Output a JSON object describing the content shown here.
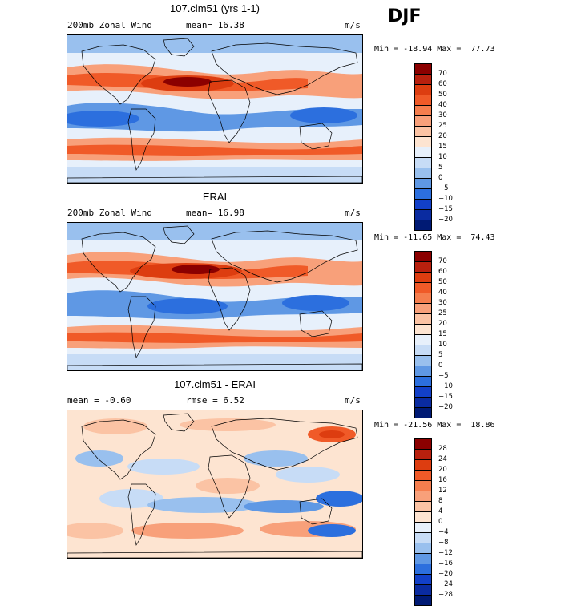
{
  "season": "DJF",
  "units": "m/s",
  "panels": [
    {
      "title": "107.clm51 (yrs 1-1)",
      "left_text": "200mb Zonal Wind",
      "mid_text": "mean=  16.38",
      "units": "m/s",
      "minmax": "Min = -18.94 Max =  77.73",
      "colorbar_labels": [
        "70",
        "60",
        "50",
        "40",
        "30",
        "25",
        "20",
        "15",
        "10",
        "5",
        "0",
        "−5",
        "−10",
        "−15",
        "−20"
      ],
      "kind": "model"
    },
    {
      "title": "ERAI",
      "left_text": "200mb Zonal Wind",
      "mid_text": "mean=  16.98",
      "units": "m/s",
      "minmax": "Min = -11.65 Max =  74.43",
      "colorbar_labels": [
        "70",
        "60",
        "50",
        "40",
        "30",
        "25",
        "20",
        "15",
        "10",
        "5",
        "0",
        "−5",
        "−10",
        "−15",
        "−20"
      ],
      "kind": "obs"
    },
    {
      "title": "107.clm51 - ERAI",
      "left_text": "mean =  -0.60",
      "mid_text": "rmse =   6.52",
      "units": "m/s",
      "minmax": "Min = -21.56 Max =  18.86",
      "colorbar_labels": [
        "28",
        "24",
        "20",
        "16",
        "12",
        "8",
        "4",
        "0",
        "−4",
        "−8",
        "−12",
        "−16",
        "−20",
        "−24",
        "−28"
      ],
      "kind": "diff"
    }
  ],
  "colors": {
    "wind_scale": [
      "#8b0000",
      "#b8200e",
      "#dd3d10",
      "#f05a28",
      "#f57e4e",
      "#f8a07a",
      "#fbc3a4",
      "#fde4d1",
      "#e7f0fb",
      "#c7dcf6",
      "#99c0ee",
      "#5f98e4",
      "#2c6fde",
      "#1240c8",
      "#0a2ba0",
      "#001a74"
    ],
    "diff_scale": [
      "#8b0000",
      "#b8200e",
      "#dd3d10",
      "#f05a28",
      "#f57e4e",
      "#f8a07a",
      "#fbc3a4",
      "#fde4d1",
      "#e7f0fb",
      "#c7dcf6",
      "#99c0ee",
      "#5f98e4",
      "#2c6fde",
      "#1240c8",
      "#0a2ba0",
      "#001a74"
    ]
  }
}
